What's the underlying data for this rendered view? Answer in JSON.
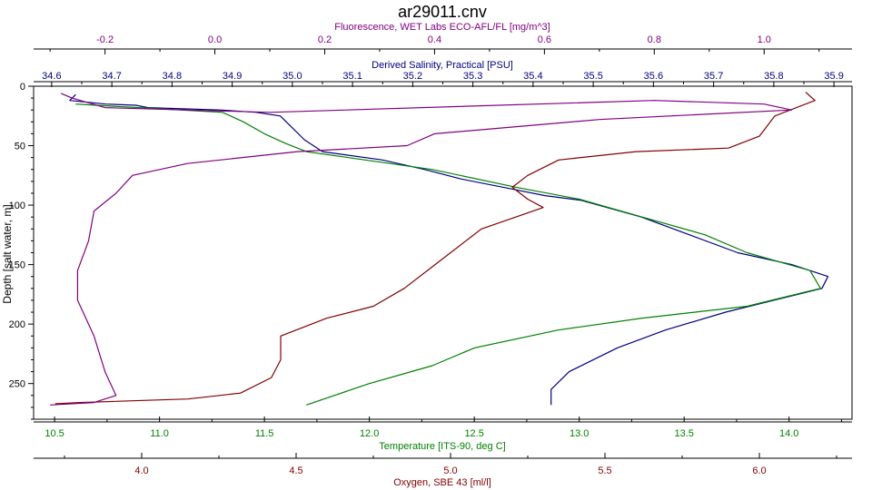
{
  "chart_data": {
    "type": "line",
    "title": "ar29011.cnv",
    "y_axis": {
      "label": "Depth [salt water, m]",
      "range": [
        0,
        280
      ],
      "inverted": true,
      "ticks": [
        0,
        50,
        100,
        150,
        200,
        250
      ]
    },
    "axes": {
      "fluorescence": {
        "label": "Fluorescence, WET Labs ECO-AFL/FL [mg/m^3]",
        "position": "top-outer",
        "color": "#800080",
        "range": [
          -0.33,
          1.16
        ],
        "ticks": [
          "-0.2",
          "0.0",
          "0.2",
          "0.4",
          "0.6",
          "0.8",
          "1.0"
        ]
      },
      "salinity": {
        "label": "Derived Salinity, Practical [PSU]",
        "position": "top-inner",
        "color": "#000080",
        "range": [
          34.57,
          35.93
        ],
        "ticks": [
          "34.6",
          "34.7",
          "34.8",
          "34.9",
          "35.0",
          "35.1",
          "35.2",
          "35.3",
          "35.4",
          "35.5",
          "35.6",
          "35.7",
          "35.8",
          "35.9"
        ]
      },
      "temperature": {
        "label": "Temperature [ITS-90, deg C]",
        "position": "bottom-inner",
        "color": "#008000",
        "range": [
          10.4,
          14.3
        ],
        "ticks": [
          "10.5",
          "11.0",
          "11.5",
          "12.0",
          "12.5",
          "13.0",
          "13.5",
          "14.0"
        ]
      },
      "oxygen": {
        "label": "Oxygen, SBE 43 [ml/l]",
        "position": "bottom-outer",
        "color": "#800000",
        "range": [
          3.65,
          6.3
        ],
        "ticks": [
          "4.0",
          "4.5",
          "5.0",
          "5.5",
          "6.0"
        ]
      }
    },
    "grid": false,
    "legend": "none",
    "series": [
      {
        "axis": "salinity",
        "color": "#000080",
        "points": [
          [
            34.64,
            7
          ],
          [
            34.63,
            12
          ],
          [
            34.69,
            15
          ],
          [
            34.74,
            16
          ],
          [
            34.76,
            18
          ],
          [
            34.88,
            20
          ],
          [
            34.94,
            22
          ],
          [
            34.98,
            25
          ],
          [
            35.0,
            35
          ],
          [
            35.02,
            45
          ],
          [
            35.05,
            55
          ],
          [
            35.15,
            62
          ],
          [
            35.22,
            70
          ],
          [
            35.28,
            78
          ],
          [
            35.36,
            86
          ],
          [
            35.42,
            92
          ],
          [
            35.48,
            96
          ],
          [
            35.58,
            110
          ],
          [
            35.66,
            125
          ],
          [
            35.74,
            140
          ],
          [
            35.83,
            150
          ],
          [
            35.89,
            160
          ],
          [
            35.88,
            170
          ],
          [
            35.8,
            180
          ],
          [
            35.72,
            190
          ],
          [
            35.62,
            205
          ],
          [
            35.54,
            220
          ],
          [
            35.46,
            240
          ],
          [
            35.43,
            255
          ],
          [
            35.43,
            268
          ]
        ]
      },
      {
        "axis": "temperature",
        "color": "#008000",
        "points": [
          [
            10.6,
            15
          ],
          [
            10.7,
            16
          ],
          [
            11.0,
            19
          ],
          [
            11.3,
            22
          ],
          [
            11.4,
            30
          ],
          [
            11.5,
            40
          ],
          [
            11.6,
            48
          ],
          [
            11.7,
            55
          ],
          [
            12.3,
            70
          ],
          [
            12.7,
            85
          ],
          [
            13.0,
            95
          ],
          [
            13.3,
            110
          ],
          [
            13.6,
            125
          ],
          [
            13.8,
            140
          ],
          [
            14.1,
            155
          ],
          [
            14.15,
            170
          ],
          [
            13.8,
            185
          ],
          [
            13.3,
            195
          ],
          [
            12.9,
            205
          ],
          [
            12.5,
            220
          ],
          [
            12.3,
            235
          ],
          [
            12.0,
            250
          ],
          [
            11.8,
            262
          ],
          [
            11.7,
            268
          ]
        ]
      },
      {
        "axis": "oxygen",
        "color": "#800000",
        "points": [
          [
            6.15,
            5
          ],
          [
            6.18,
            12
          ],
          [
            6.05,
            25
          ],
          [
            6.0,
            42
          ],
          [
            5.9,
            52
          ],
          [
            5.6,
            55
          ],
          [
            5.35,
            62
          ],
          [
            5.25,
            75
          ],
          [
            5.2,
            85
          ],
          [
            5.25,
            95
          ],
          [
            5.3,
            102
          ],
          [
            5.1,
            120
          ],
          [
            4.95,
            150
          ],
          [
            4.85,
            170
          ],
          [
            4.75,
            185
          ],
          [
            4.6,
            195
          ],
          [
            4.45,
            210
          ],
          [
            4.45,
            230
          ],
          [
            4.42,
            245
          ],
          [
            4.32,
            258
          ],
          [
            4.15,
            263
          ],
          [
            3.8,
            266
          ],
          [
            3.72,
            267
          ]
        ]
      },
      {
        "axis": "fluorescence",
        "color": "#800080",
        "points": [
          [
            -0.28,
            6
          ],
          [
            -0.26,
            10
          ],
          [
            -0.2,
            18
          ],
          [
            0.1,
            22
          ],
          [
            0.8,
            12
          ],
          [
            1.0,
            15
          ],
          [
            1.05,
            20
          ],
          [
            0.7,
            28
          ],
          [
            0.4,
            40
          ],
          [
            0.35,
            50
          ],
          [
            0.15,
            55
          ],
          [
            -0.05,
            65
          ],
          [
            -0.15,
            75
          ],
          [
            -0.18,
            90
          ],
          [
            -0.22,
            105
          ],
          [
            -0.23,
            130
          ],
          [
            -0.25,
            155
          ],
          [
            -0.25,
            180
          ],
          [
            -0.22,
            210
          ],
          [
            -0.2,
            240
          ],
          [
            -0.18,
            260
          ],
          [
            -0.22,
            266
          ],
          [
            -0.3,
            268
          ]
        ]
      }
    ]
  }
}
